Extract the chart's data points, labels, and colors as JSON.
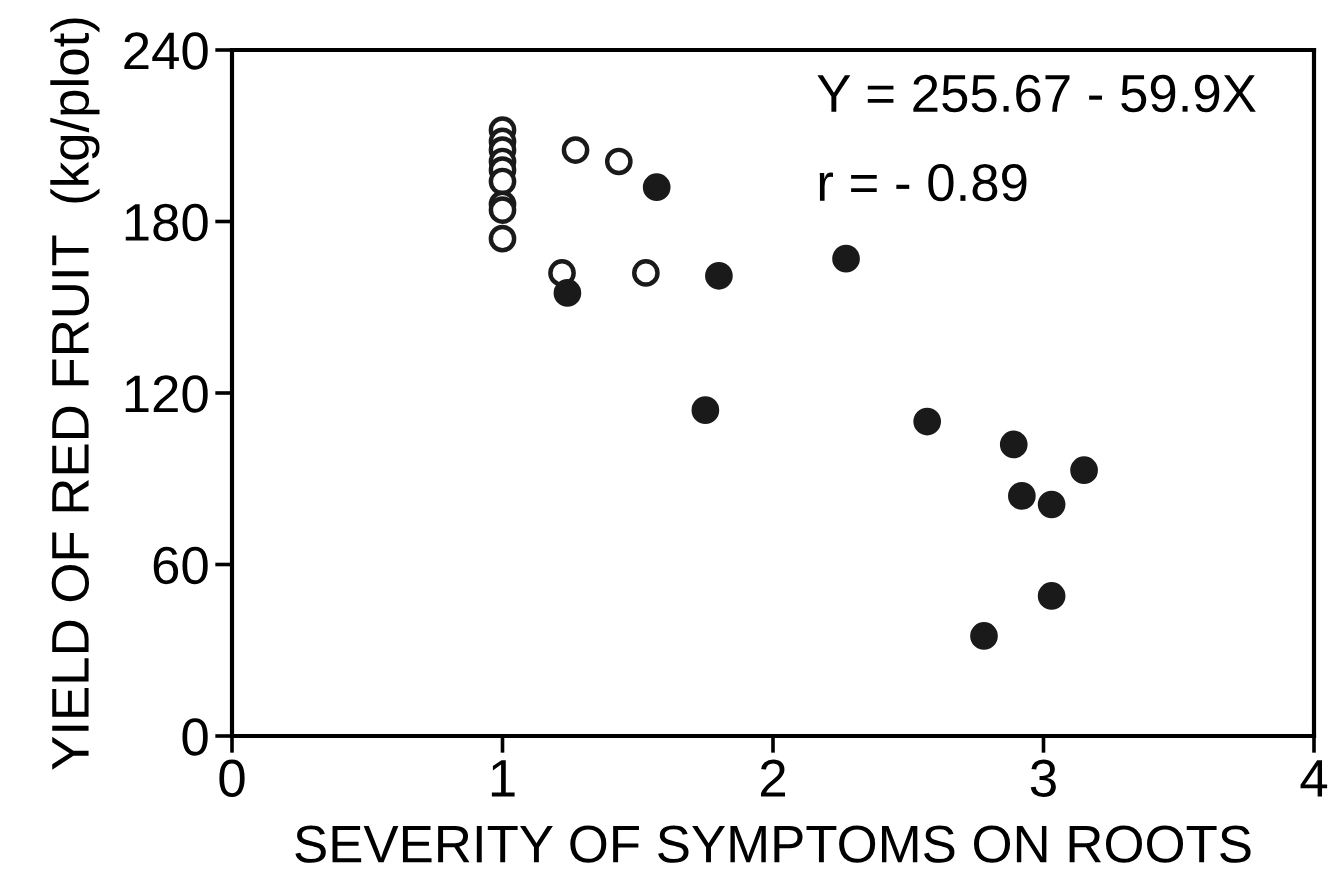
{
  "chart_data": {
    "type": "scatter",
    "xlabel": "SEVERITY OF SYMPTOMS ON ROOTS",
    "ylabel": "YIELD OF RED FRUIT  (kg/plot)",
    "xlim": [
      0,
      4
    ],
    "ylim": [
      0,
      240
    ],
    "xticks": [
      0,
      1,
      2,
      3,
      4
    ],
    "yticks": [
      0,
      60,
      120,
      180,
      240
    ],
    "grid": false,
    "legend": false,
    "marker": "circle",
    "annotations": [
      "Y = 255.67 - 59.9X",
      "r = - 0.89"
    ],
    "series": [
      {
        "color": "#ffffff",
        "x": [
          1,
          1,
          1,
          1,
          1,
          1,
          1,
          1,
          1,
          1.27,
          1.43,
          1.22,
          1.53
        ],
        "values": [
          212,
          208,
          205,
          201,
          198,
          194,
          186,
          184,
          174,
          205,
          201,
          162,
          162
        ]
      },
      {
        "color": "#1a1a1a",
        "x": [
          1.57,
          1.24,
          1.8,
          1.75,
          2.27,
          2.57,
          2.89,
          3.15,
          2.92,
          3.03,
          3.03,
          2.78
        ],
        "values": [
          192,
          155,
          161,
          114,
          167,
          110,
          102,
          93,
          84,
          81,
          49,
          35
        ]
      }
    ]
  }
}
